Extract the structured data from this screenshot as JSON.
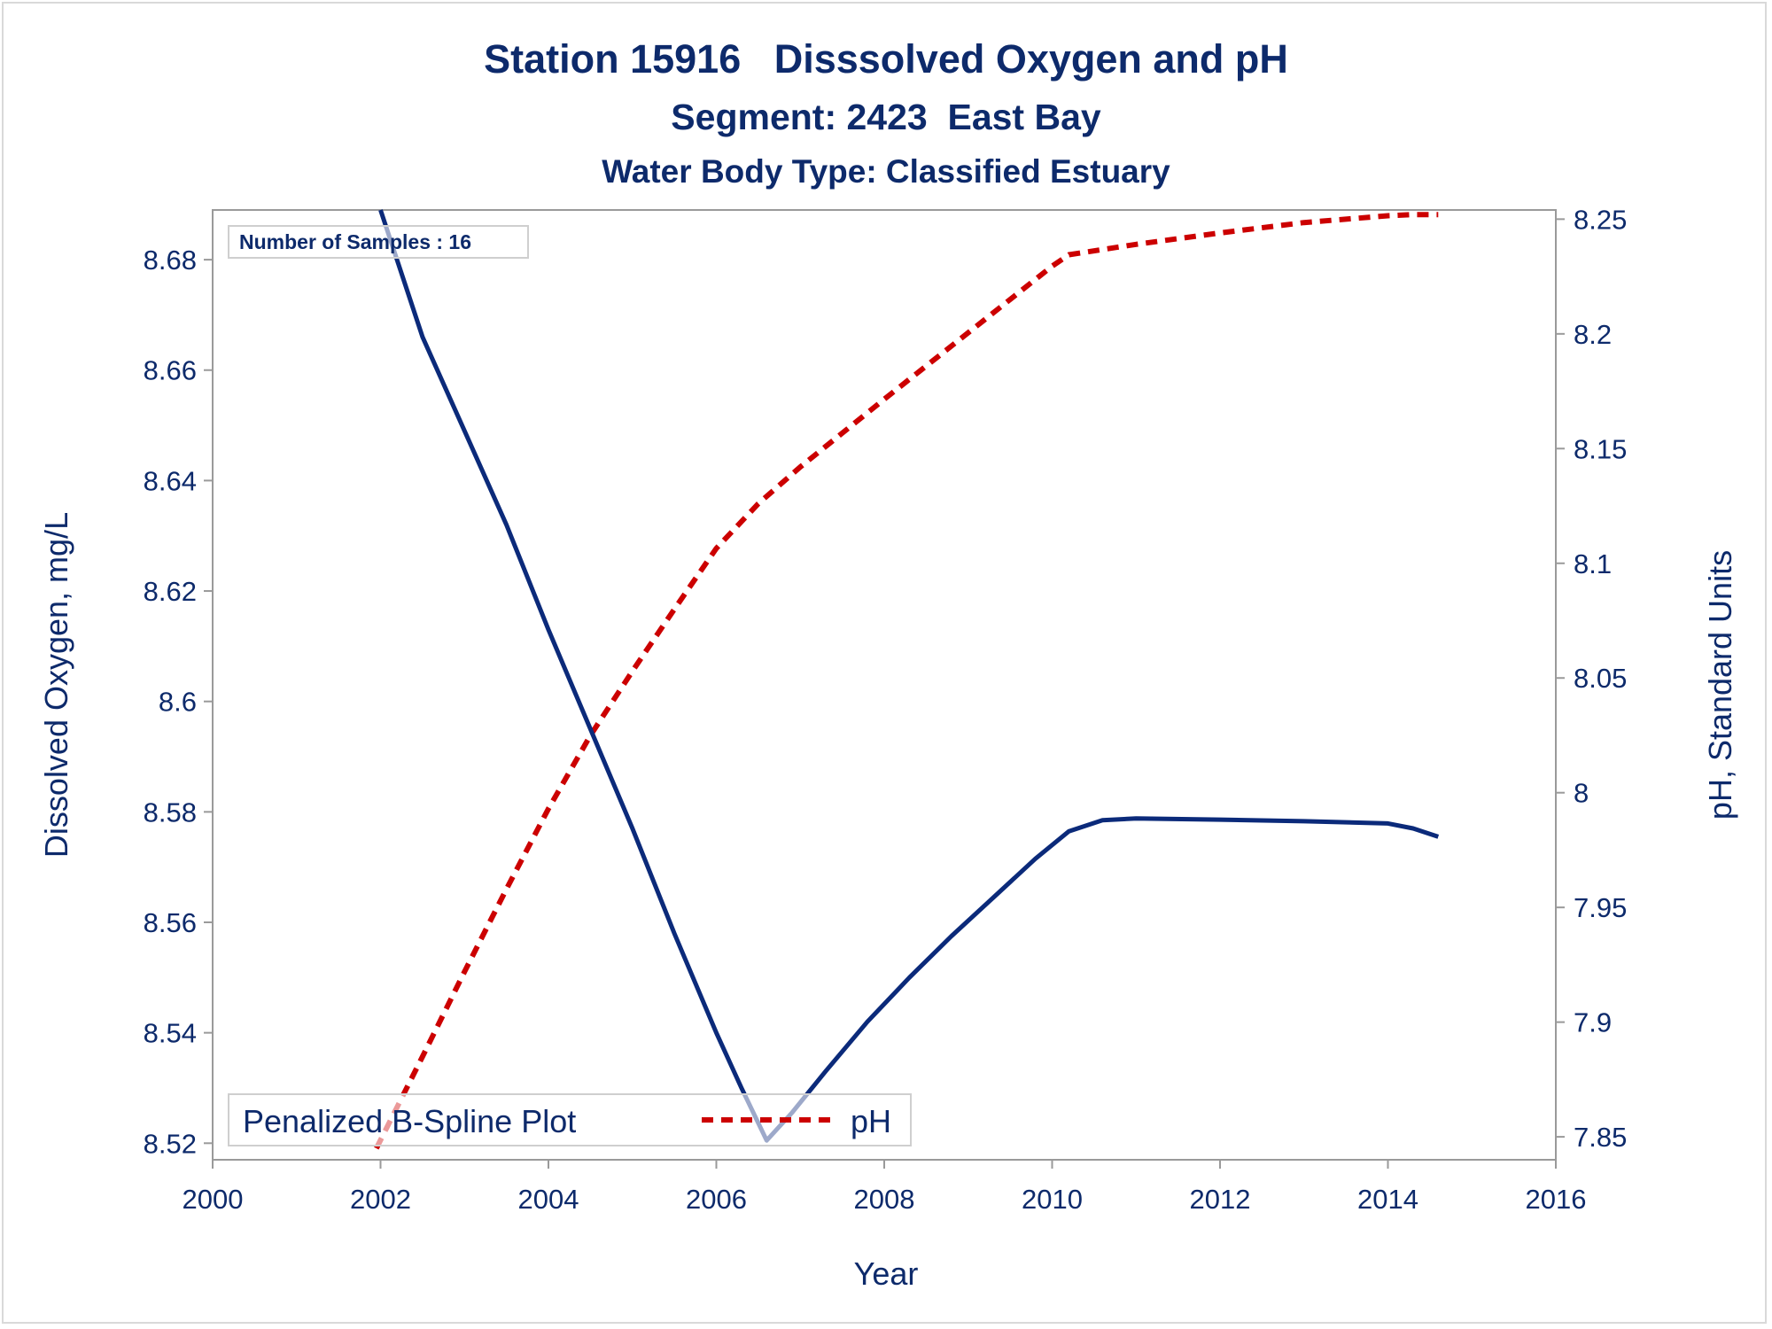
{
  "chart_data": {
    "type": "line",
    "title": "Station 15916   Disssolved Oxygen and pH",
    "subtitle": "Segment: 2423  East Bay",
    "subtitle2": "Water Body Type: Classified Estuary",
    "xlabel": "Year",
    "ylabel": "Dissolved Oxygen, mg/L",
    "y2label": "pH, Standard Units",
    "annotation": "Number of Samples : 16",
    "legend_title": "Penalized B-Spline Plot",
    "legend_placement": "bottom-left inside",
    "grid": false,
    "xlim": [
      2000,
      2016
    ],
    "ylim": [
      8.517,
      8.689
    ],
    "y2lim": [
      7.84,
      8.254
    ],
    "x_ticks": [
      "2000",
      "2002",
      "2004",
      "2006",
      "2008",
      "2010",
      "2012",
      "2014",
      "2016"
    ],
    "y_ticks": [
      "8.52",
      "8.54",
      "8.56",
      "8.58",
      "8.6",
      "8.62",
      "8.64",
      "8.66",
      "8.68"
    ],
    "y2_ticks": [
      "7.85",
      "7.9",
      "7.95",
      "8",
      "8.05",
      "8.1",
      "8.15",
      "8.2",
      "8.25"
    ],
    "series": [
      {
        "axis": "left",
        "color": "#0b2a7a",
        "dash": "solid",
        "x": [
          2002.0,
          2002.5,
          2003.0,
          2003.5,
          2004.0,
          2004.5,
          2005.0,
          2005.5,
          2006.0,
          2006.3,
          2006.6,
          2006.9,
          2007.3,
          2007.8,
          2008.3,
          2008.8,
          2009.3,
          2009.8,
          2010.2,
          2010.6,
          2011.0,
          2012.0,
          2013.0,
          2014.0,
          2014.3,
          2014.6
        ],
        "values": [
          8.689,
          8.666,
          8.649,
          8.632,
          8.613,
          8.595,
          8.577,
          8.558,
          8.54,
          8.53,
          8.5205,
          8.5255,
          8.533,
          8.542,
          8.55,
          8.5575,
          8.5645,
          8.5715,
          8.5765,
          8.5785,
          8.5788,
          8.5786,
          8.5783,
          8.5779,
          8.577,
          8.5755
        ]
      },
      {
        "name": "pH",
        "axis": "right",
        "color": "#cc0000",
        "dash": "dashed",
        "x": [
          2001.95,
          2002.5,
          2003.0,
          2003.5,
          2004.0,
          2004.5,
          2005.0,
          2005.5,
          2006.0,
          2006.5,
          2007.0,
          2008.0,
          2009.0,
          2010.0,
          2010.2,
          2011.0,
          2012.0,
          2013.0,
          2014.0,
          2014.3,
          2014.6
        ],
        "values": [
          7.845,
          7.885,
          7.922,
          7.958,
          7.993,
          8.025,
          8.053,
          8.08,
          8.1065,
          8.126,
          8.142,
          8.1715,
          8.2005,
          8.2295,
          8.2345,
          8.239,
          8.244,
          8.2485,
          8.2515,
          8.252,
          8.252
        ]
      }
    ]
  }
}
